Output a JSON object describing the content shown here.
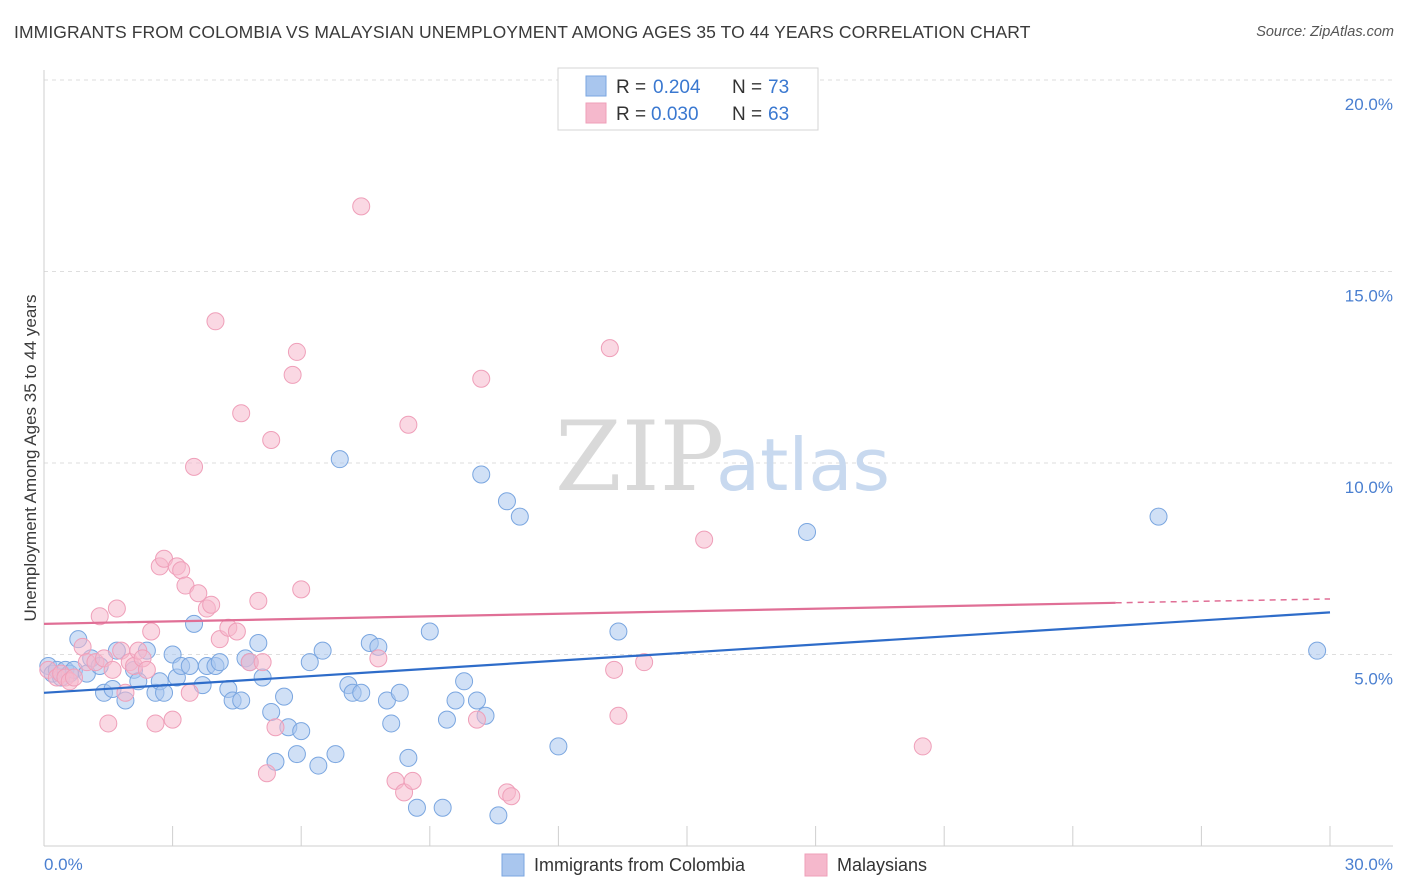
{
  "title": "IMMIGRANTS FROM COLOMBIA VS MALAYSIAN UNEMPLOYMENT AMONG AGES 35 TO 44 YEARS CORRELATION CHART",
  "source": "Source: ZipAtlas.com",
  "watermark": {
    "zip": "ZIP",
    "atlas": "atlas"
  },
  "legend": {
    "rows": [
      {
        "r_label": "R = ",
        "r_value": "0.204",
        "n_label": "N = ",
        "n_value": "73",
        "color": "#a9c6ee"
      },
      {
        "r_label": "R = ",
        "r_value": "0.030",
        "n_label": "N = ",
        "n_value": "63",
        "color": "#f5b8cc"
      }
    ]
  },
  "bottom_legend": [
    {
      "label": "Immigrants from Colombia",
      "color": "#a9c6ee"
    },
    {
      "label": "Malaysians",
      "color": "#f5b8cc"
    }
  ],
  "chart_data": {
    "type": "scatter",
    "xlabel": "",
    "ylabel": "Unemployment Among Ages 35 to 44 years",
    "xlim": [
      0,
      30
    ],
    "ylim": [
      0,
      20
    ],
    "x_tick_labels": [
      "0.0%",
      "30.0%"
    ],
    "y_ticks": [
      5,
      10,
      15,
      20
    ],
    "y_tick_labels": [
      "5.0%",
      "10.0%",
      "15.0%",
      "20.0%"
    ],
    "grid": true,
    "series": [
      {
        "name": "Immigrants from Colombia",
        "color": "#7aa6e0",
        "fill": "#a9c6ee",
        "line_color": "#2e6cc9",
        "trend": {
          "x": [
            0,
            30
          ],
          "y": [
            4.0,
            6.1
          ],
          "dashed_from": null
        },
        "points": [
          [
            0.1,
            4.7
          ],
          [
            0.2,
            4.5
          ],
          [
            0.3,
            4.6
          ],
          [
            0.4,
            4.4
          ],
          [
            0.5,
            4.6
          ],
          [
            0.6,
            4.5
          ],
          [
            0.7,
            4.6
          ],
          [
            0.8,
            5.4
          ],
          [
            1.0,
            4.5
          ],
          [
            1.1,
            4.9
          ],
          [
            1.3,
            4.7
          ],
          [
            1.4,
            4.0
          ],
          [
            1.6,
            4.1
          ],
          [
            1.7,
            5.1
          ],
          [
            1.9,
            3.8
          ],
          [
            2.1,
            4.6
          ],
          [
            2.2,
            4.3
          ],
          [
            2.4,
            5.1
          ],
          [
            2.6,
            4.0
          ],
          [
            2.7,
            4.3
          ],
          [
            2.8,
            4.0
          ],
          [
            3.0,
            5.0
          ],
          [
            3.1,
            4.4
          ],
          [
            3.2,
            4.7
          ],
          [
            3.4,
            4.7
          ],
          [
            3.5,
            5.8
          ],
          [
            3.7,
            4.2
          ],
          [
            3.8,
            4.7
          ],
          [
            4.0,
            4.7
          ],
          [
            4.1,
            4.8
          ],
          [
            4.3,
            4.1
          ],
          [
            4.4,
            3.8
          ],
          [
            4.6,
            3.8
          ],
          [
            4.7,
            4.9
          ],
          [
            4.8,
            4.8
          ],
          [
            5.0,
            5.3
          ],
          [
            5.1,
            4.4
          ],
          [
            5.3,
            3.5
          ],
          [
            5.4,
            2.2
          ],
          [
            5.6,
            3.9
          ],
          [
            5.7,
            3.1
          ],
          [
            5.9,
            2.4
          ],
          [
            6.0,
            3.0
          ],
          [
            6.2,
            4.8
          ],
          [
            6.4,
            2.1
          ],
          [
            6.5,
            5.1
          ],
          [
            6.8,
            2.4
          ],
          [
            6.9,
            10.1
          ],
          [
            7.1,
            4.2
          ],
          [
            7.2,
            4.0
          ],
          [
            7.4,
            4.0
          ],
          [
            7.6,
            5.3
          ],
          [
            7.8,
            5.2
          ],
          [
            8.0,
            3.8
          ],
          [
            8.1,
            3.2
          ],
          [
            8.3,
            4.0
          ],
          [
            8.5,
            2.3
          ],
          [
            8.7,
            1.0
          ],
          [
            9.0,
            5.6
          ],
          [
            9.3,
            1.0
          ],
          [
            9.4,
            3.3
          ],
          [
            9.6,
            3.8
          ],
          [
            9.8,
            4.3
          ],
          [
            10.1,
            3.8
          ],
          [
            10.2,
            9.7
          ],
          [
            10.3,
            3.4
          ],
          [
            10.6,
            0.8
          ],
          [
            10.8,
            9.0
          ],
          [
            11.1,
            8.6
          ],
          [
            12.0,
            2.6
          ],
          [
            13.4,
            5.6
          ],
          [
            17.8,
            8.2
          ],
          [
            26.0,
            8.6
          ],
          [
            29.7,
            5.1
          ]
        ]
      },
      {
        "name": "Malaysians",
        "color": "#ef9fb9",
        "fill": "#f5b8cc",
        "line_color": "#e06f96",
        "trend": {
          "x": [
            0,
            25,
            30
          ],
          "y": [
            5.8,
            6.35,
            6.45
          ],
          "dashed_from": 25
        },
        "points": [
          [
            0.1,
            4.6
          ],
          [
            0.3,
            4.4
          ],
          [
            0.4,
            4.5
          ],
          [
            0.5,
            4.4
          ],
          [
            0.6,
            4.3
          ],
          [
            0.7,
            4.4
          ],
          [
            0.9,
            5.2
          ],
          [
            1.0,
            4.8
          ],
          [
            1.2,
            4.8
          ],
          [
            1.3,
            6.0
          ],
          [
            1.4,
            4.9
          ],
          [
            1.5,
            3.2
          ],
          [
            1.6,
            4.6
          ],
          [
            1.7,
            6.2
          ],
          [
            1.8,
            5.1
          ],
          [
            1.9,
            4.0
          ],
          [
            2.0,
            4.8
          ],
          [
            2.1,
            4.7
          ],
          [
            2.2,
            5.1
          ],
          [
            2.3,
            4.9
          ],
          [
            2.4,
            4.6
          ],
          [
            2.5,
            5.6
          ],
          [
            2.6,
            3.2
          ],
          [
            2.7,
            7.3
          ],
          [
            2.8,
            7.5
          ],
          [
            3.0,
            3.3
          ],
          [
            3.1,
            7.3
          ],
          [
            3.2,
            7.2
          ],
          [
            3.3,
            6.8
          ],
          [
            3.4,
            4.0
          ],
          [
            3.5,
            9.9
          ],
          [
            3.6,
            6.6
          ],
          [
            3.8,
            6.2
          ],
          [
            3.9,
            6.3
          ],
          [
            4.0,
            13.7
          ],
          [
            4.1,
            5.4
          ],
          [
            4.3,
            5.7
          ],
          [
            4.5,
            5.6
          ],
          [
            4.6,
            11.3
          ],
          [
            4.8,
            4.8
          ],
          [
            5.0,
            6.4
          ],
          [
            5.1,
            4.8
          ],
          [
            5.2,
            1.9
          ],
          [
            5.3,
            10.6
          ],
          [
            5.4,
            3.1
          ],
          [
            5.8,
            12.3
          ],
          [
            5.9,
            12.9
          ],
          [
            6.0,
            6.7
          ],
          [
            7.4,
            16.7
          ],
          [
            7.8,
            4.9
          ],
          [
            8.2,
            1.7
          ],
          [
            8.4,
            1.4
          ],
          [
            8.5,
            11.0
          ],
          [
            8.6,
            1.7
          ],
          [
            10.1,
            3.3
          ],
          [
            10.2,
            12.2
          ],
          [
            10.8,
            1.4
          ],
          [
            10.9,
            1.3
          ],
          [
            13.2,
            13.0
          ],
          [
            13.3,
            4.6
          ],
          [
            13.4,
            3.4
          ],
          [
            14.0,
            4.8
          ],
          [
            15.4,
            8.0
          ],
          [
            20.5,
            2.6
          ]
        ]
      }
    ]
  }
}
